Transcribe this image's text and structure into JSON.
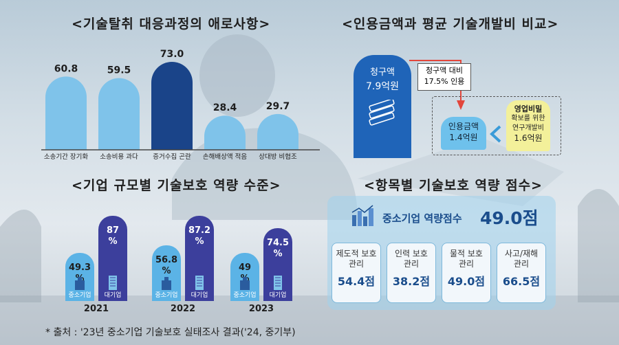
{
  "colors": {
    "light_bar": "#7fc3ea",
    "dark_bar": "#1a4489",
    "sme_bar": "#5bb3e6",
    "large_bar": "#3c3f9c",
    "claim_box": "#1f64b8",
    "recog_box": "#6ec1ec",
    "trade_box": "#f3f09a",
    "score_text": "#1a4d8c"
  },
  "section_titles": {
    "difficulties": "<기술탈취 대응과정의 애로사항>",
    "amounts": "<인용금액과 평균 기술개발비 비교>",
    "scale": "<기업 규모별 기술보호 역량 수준>",
    "items": "<항목별 기술보호 역량 점수>"
  },
  "chart_data": [
    {
      "type": "bar",
      "title": "<기술탈취 대응과정의 애로사항>",
      "categories": [
        "소송기간 장기화",
        "소송비용 과다",
        "증거수집 곤란",
        "손해배상액 적음",
        "상대방 비협조"
      ],
      "values": [
        60.8,
        59.5,
        73.0,
        28.4,
        29.7
      ],
      "value_labels": [
        "60.8",
        "59.5",
        "73.0",
        "28.4",
        "29.7"
      ],
      "highlight_index": 2,
      "ylim": [
        0,
        80
      ]
    },
    {
      "type": "bar",
      "title": "<기업 규모별 기술보호 역량 수준>",
      "categories": [
        "2021",
        "2022",
        "2023"
      ],
      "series": [
        {
          "name": "중소기업",
          "values": [
            49.3,
            56.8,
            49.0
          ],
          "value_labels": [
            "49.3\n%",
            "56.8\n%",
            "49\n%"
          ]
        },
        {
          "name": "대기업",
          "values": [
            87.0,
            87.2,
            74.5
          ],
          "value_labels": [
            "87\n%",
            "87.2\n%",
            "74.5\n%"
          ]
        }
      ],
      "ylim": [
        0,
        100
      ]
    }
  ],
  "amounts": {
    "claim_label": "청구액",
    "claim_value": "7.9억원",
    "ratio_line1": "청구액 대비",
    "ratio_line2": "17.5% 인용",
    "recognized_label": "인용금액",
    "recognized_value": "1.4억원",
    "trade_line1": "영업비밀",
    "trade_line2": "확보를 위한",
    "trade_line3": "연구개발비",
    "trade_value": "1.6억원"
  },
  "items": {
    "sme_label": "중소기업 역량점수",
    "sme_score": "49.0점",
    "boxes": [
      {
        "line1": "제도적 보호",
        "line2": "관리",
        "score": "54.4점"
      },
      {
        "line1": "인력 보호",
        "line2": "관리",
        "score": "38.2점"
      },
      {
        "line1": "물적 보호",
        "line2": "관리",
        "score": "49.0점"
      },
      {
        "line1": "사고/재해",
        "line2": "관리",
        "score": "66.5점"
      }
    ]
  },
  "footnote": "* 출처 : '23년 중소기업 기술보호 실태조사 결과('24, 중기부)"
}
